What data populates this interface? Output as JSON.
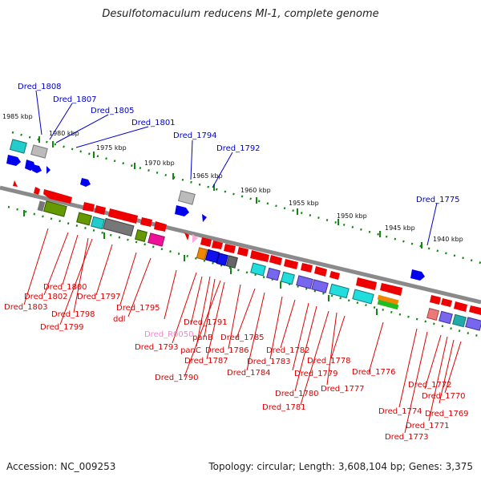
{
  "title": "Desulfotomaculum reducens MI-1, complete genome",
  "footer": {
    "accession": "Accession: NC_009253",
    "topology": "Topology: circular; Length: 3,608,104 bp; Genes: 3,375"
  },
  "kbp_labels": [
    "1985 kbp",
    "1980 kbp",
    "1975 kbp",
    "1970 kbp",
    "1965 kbp",
    "1960 kbp",
    "1955 kbp",
    "1950 kbp",
    "1945 kbp",
    "1940 kbp"
  ],
  "labels_top": [
    "Dred_1808",
    "Dred_1807",
    "Dred_1805",
    "Dred_1801",
    "Dred_1794",
    "Dred_1792",
    "Dred_1775"
  ],
  "labels_bottom": [
    "Dred_1800",
    "Dred_1802",
    "Dred_1803",
    "Dred_1797",
    "Dred_1798",
    "Dred_1799",
    "Dred_1795",
    "ddl",
    "Dred_R0050",
    "Dred_1791",
    "panB",
    "Dred_1793",
    "panC",
    "Dred_1787",
    "Dred_1786",
    "Dred_1785",
    "Dred_1790",
    "Dred_1784",
    "Dred_1783",
    "Dred_1782",
    "Dred_1779",
    "Dred_1778",
    "Dred_1776",
    "Dred_1780",
    "Dred_1777",
    "Dred_1781",
    "Dred_1772",
    "Dred_1770",
    "Dred_1774",
    "Dred_1769",
    "Dred_1771",
    "Dred_1773"
  ],
  "colors": {
    "top_label": "#0000cc",
    "bottom_label": "#dd0000",
    "rna_label": "#ee88cc",
    "backbone": "#999999",
    "tick": "#118811"
  }
}
